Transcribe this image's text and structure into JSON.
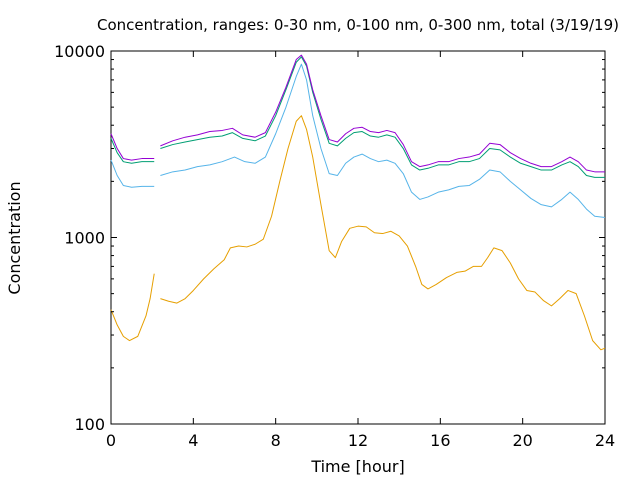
{
  "chart_data": {
    "type": "line",
    "title": "Concentration, ranges: 0-30 nm, 0-100 nm, 0-300 nm, total (3/19/19)",
    "xlabel": "Time [hour]",
    "ylabel": "Concentration",
    "xlim": [
      0,
      24
    ],
    "ylim": [
      100,
      10000
    ],
    "yscale": "log",
    "grid": false,
    "x_ticks": [
      0,
      4,
      8,
      12,
      16,
      20,
      24
    ],
    "x_tick_labels": [
      "0",
      "4",
      "8",
      "12",
      "16",
      "20",
      "24"
    ],
    "y_ticks": [
      100,
      1000,
      10000
    ],
    "y_tick_labels": [
      "100",
      "1000",
      "10000"
    ],
    "series": [
      {
        "color": "#e69f00",
        "segments": [
          [
            [
              0,
              410
            ],
            [
              0.3,
              340
            ],
            [
              0.6,
              295
            ],
            [
              0.9,
              280
            ],
            [
              1.3,
              295
            ],
            [
              1.7,
              380
            ],
            [
              1.9,
              470
            ],
            [
              2.1,
              640
            ]
          ],
          [
            [
              2.4,
              470
            ],
            [
              2.8,
              455
            ],
            [
              3.2,
              445
            ],
            [
              3.6,
              470
            ],
            [
              4.0,
              520
            ],
            [
              4.5,
              600
            ],
            [
              5.0,
              680
            ],
            [
              5.5,
              760
            ],
            [
              5.8,
              880
            ],
            [
              6.2,
              900
            ],
            [
              6.6,
              890
            ],
            [
              7.0,
              920
            ],
            [
              7.4,
              980
            ],
            [
              7.8,
              1300
            ],
            [
              8.2,
              2000
            ],
            [
              8.6,
              3000
            ],
            [
              9.0,
              4200
            ],
            [
              9.25,
              4500
            ],
            [
              9.5,
              3800
            ],
            [
              9.8,
              2700
            ],
            [
              10.2,
              1500
            ],
            [
              10.6,
              850
            ],
            [
              10.9,
              780
            ],
            [
              11.2,
              950
            ],
            [
              11.6,
              1120
            ],
            [
              12.0,
              1150
            ],
            [
              12.4,
              1140
            ],
            [
              12.8,
              1060
            ],
            [
              13.2,
              1050
            ],
            [
              13.6,
              1080
            ],
            [
              14.0,
              1020
            ],
            [
              14.4,
              900
            ],
            [
              14.8,
              700
            ],
            [
              15.1,
              560
            ],
            [
              15.4,
              530
            ],
            [
              15.8,
              560
            ],
            [
              16.3,
              610
            ],
            [
              16.8,
              650
            ],
            [
              17.2,
              660
            ],
            [
              17.6,
              700
            ],
            [
              18.0,
              700
            ],
            [
              18.3,
              780
            ],
            [
              18.6,
              880
            ],
            [
              19.0,
              850
            ],
            [
              19.4,
              730
            ],
            [
              19.8,
              600
            ],
            [
              20.2,
              520
            ],
            [
              20.6,
              510
            ],
            [
              21.0,
              460
            ],
            [
              21.4,
              430
            ],
            [
              21.8,
              470
            ],
            [
              22.2,
              520
            ],
            [
              22.6,
              500
            ],
            [
              23.0,
              380
            ],
            [
              23.4,
              280
            ],
            [
              23.8,
              250
            ],
            [
              24.0,
              255
            ]
          ]
        ]
      },
      {
        "color": "#56b4e9",
        "segments": [
          [
            [
              0,
              2600
            ],
            [
              0.3,
              2150
            ],
            [
              0.6,
              1900
            ],
            [
              1.0,
              1860
            ],
            [
              1.5,
              1880
            ],
            [
              2.1,
              1880
            ]
          ],
          [
            [
              2.4,
              2150
            ],
            [
              3.0,
              2250
            ],
            [
              3.6,
              2300
            ],
            [
              4.2,
              2400
            ],
            [
              4.8,
              2450
            ],
            [
              5.4,
              2550
            ],
            [
              6.0,
              2700
            ],
            [
              6.5,
              2550
            ],
            [
              7.0,
              2500
            ],
            [
              7.5,
              2700
            ],
            [
              8.0,
              3600
            ],
            [
              8.5,
              5000
            ],
            [
              9.0,
              7300
            ],
            [
              9.25,
              8500
            ],
            [
              9.5,
              7000
            ],
            [
              9.8,
              4500
            ],
            [
              10.2,
              3000
            ],
            [
              10.6,
              2200
            ],
            [
              11.0,
              2150
            ],
            [
              11.4,
              2500
            ],
            [
              11.8,
              2700
            ],
            [
              12.2,
              2800
            ],
            [
              12.6,
              2650
            ],
            [
              13.0,
              2550
            ],
            [
              13.4,
              2600
            ],
            [
              13.8,
              2500
            ],
            [
              14.2,
              2200
            ],
            [
              14.6,
              1750
            ],
            [
              15.0,
              1600
            ],
            [
              15.4,
              1650
            ],
            [
              15.9,
              1750
            ],
            [
              16.4,
              1800
            ],
            [
              16.9,
              1880
            ],
            [
              17.4,
              1900
            ],
            [
              17.9,
              2050
            ],
            [
              18.4,
              2300
            ],
            [
              18.9,
              2250
            ],
            [
              19.4,
              2000
            ],
            [
              19.9,
              1800
            ],
            [
              20.4,
              1620
            ],
            [
              20.9,
              1500
            ],
            [
              21.4,
              1460
            ],
            [
              21.9,
              1600
            ],
            [
              22.3,
              1750
            ],
            [
              22.7,
              1600
            ],
            [
              23.1,
              1420
            ],
            [
              23.5,
              1300
            ],
            [
              24.0,
              1280
            ]
          ]
        ]
      },
      {
        "color": "#009e73",
        "segments": [
          [
            [
              0,
              3400
            ],
            [
              0.3,
              2850
            ],
            [
              0.6,
              2550
            ],
            [
              1.0,
              2500
            ],
            [
              1.5,
              2550
            ],
            [
              2.1,
              2550
            ]
          ],
          [
            [
              2.4,
              3000
            ],
            [
              3.0,
              3150
            ],
            [
              3.6,
              3250
            ],
            [
              4.2,
              3350
            ],
            [
              4.8,
              3450
            ],
            [
              5.4,
              3500
            ],
            [
              5.9,
              3650
            ],
            [
              6.4,
              3400
            ],
            [
              7.0,
              3300
            ],
            [
              7.5,
              3500
            ],
            [
              8.0,
              4500
            ],
            [
              8.5,
              6200
            ],
            [
              9.0,
              8700
            ],
            [
              9.25,
              9300
            ],
            [
              9.5,
              8300
            ],
            [
              9.8,
              6000
            ],
            [
              10.2,
              4300
            ],
            [
              10.6,
              3200
            ],
            [
              11.0,
              3100
            ],
            [
              11.4,
              3400
            ],
            [
              11.8,
              3650
            ],
            [
              12.2,
              3700
            ],
            [
              12.6,
              3500
            ],
            [
              13.0,
              3450
            ],
            [
              13.4,
              3550
            ],
            [
              13.8,
              3450
            ],
            [
              14.2,
              3000
            ],
            [
              14.6,
              2450
            ],
            [
              15.0,
              2300
            ],
            [
              15.4,
              2350
            ],
            [
              15.9,
              2450
            ],
            [
              16.4,
              2450
            ],
            [
              16.9,
              2550
            ],
            [
              17.4,
              2550
            ],
            [
              17.9,
              2650
            ],
            [
              18.4,
              3000
            ],
            [
              18.9,
              2950
            ],
            [
              19.4,
              2700
            ],
            [
              19.9,
              2500
            ],
            [
              20.4,
              2400
            ],
            [
              20.9,
              2300
            ],
            [
              21.4,
              2300
            ],
            [
              21.9,
              2450
            ],
            [
              22.3,
              2550
            ],
            [
              22.7,
              2400
            ],
            [
              23.1,
              2150
            ],
            [
              23.5,
              2100
            ],
            [
              24.0,
              2100
            ]
          ]
        ]
      },
      {
        "color": "#9400d3",
        "segments": [
          [
            [
              0,
              3600
            ],
            [
              0.3,
              3000
            ],
            [
              0.6,
              2650
            ],
            [
              1.0,
              2600
            ],
            [
              1.5,
              2650
            ],
            [
              2.1,
              2650
            ]
          ],
          [
            [
              2.4,
              3100
            ],
            [
              3.0,
              3300
            ],
            [
              3.6,
              3450
            ],
            [
              4.2,
              3550
            ],
            [
              4.8,
              3700
            ],
            [
              5.4,
              3750
            ],
            [
              5.9,
              3850
            ],
            [
              6.4,
              3550
            ],
            [
              7.0,
              3450
            ],
            [
              7.5,
              3650
            ],
            [
              8.0,
              4700
            ],
            [
              8.5,
              6400
            ],
            [
              9.0,
              9000
            ],
            [
              9.25,
              9500
            ],
            [
              9.5,
              8500
            ],
            [
              9.8,
              6200
            ],
            [
              10.2,
              4500
            ],
            [
              10.6,
              3350
            ],
            [
              11.0,
              3250
            ],
            [
              11.4,
              3600
            ],
            [
              11.8,
              3850
            ],
            [
              12.2,
              3900
            ],
            [
              12.6,
              3700
            ],
            [
              13.0,
              3650
            ],
            [
              13.4,
              3750
            ],
            [
              13.8,
              3650
            ],
            [
              14.2,
              3150
            ],
            [
              14.6,
              2550
            ],
            [
              15.0,
              2400
            ],
            [
              15.4,
              2450
            ],
            [
              15.9,
              2550
            ],
            [
              16.4,
              2550
            ],
            [
              16.9,
              2650
            ],
            [
              17.4,
              2700
            ],
            [
              17.9,
              2800
            ],
            [
              18.4,
              3200
            ],
            [
              18.9,
              3150
            ],
            [
              19.4,
              2850
            ],
            [
              19.9,
              2650
            ],
            [
              20.4,
              2500
            ],
            [
              20.9,
              2400
            ],
            [
              21.4,
              2400
            ],
            [
              21.9,
              2550
            ],
            [
              22.3,
              2700
            ],
            [
              22.7,
              2550
            ],
            [
              23.1,
              2300
            ],
            [
              23.5,
              2250
            ],
            [
              24.0,
              2250
            ]
          ]
        ]
      }
    ]
  }
}
